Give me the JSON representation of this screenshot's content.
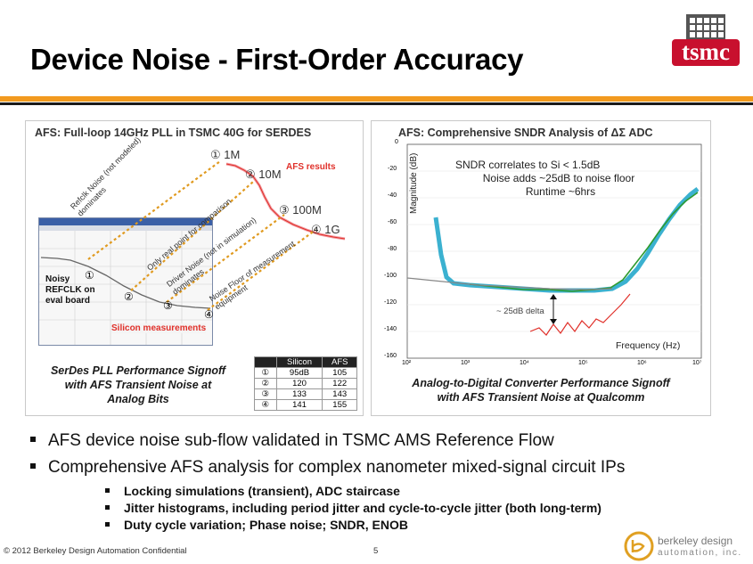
{
  "slide": {
    "title": "Device Noise - First-Order Accuracy",
    "logo_text": "tsmc",
    "footer_left": "© 2012 Berkeley Design Automation Confidential",
    "page_number": "5",
    "company_line1": "berkeley design",
    "company_line2": "automation, inc."
  },
  "left_panel": {
    "title": "AFS: Full-loop 14GHz PLL in TSMC 40G for SERDES",
    "caption_lines": [
      "SerDes PLL Performance Signoff",
      "with AFS Transient Noise at",
      "Analog Bits"
    ],
    "markers": [
      "① 1M",
      "② 10M",
      "③ 100M",
      "④ 1G"
    ],
    "small_markers": [
      "①",
      "②",
      "③",
      "④"
    ],
    "afs_results": "AFS results",
    "noisy_lines": [
      "Noisy",
      "REFCLK on",
      "eval board"
    ],
    "silicon_measurements": "Silicon measurements",
    "annot_refclk": "Refclk Noise (not modeled) dominates",
    "annot_only_real": "Only real point for comparison",
    "annot_driver": "Driver Noise (not in simulation) dominates",
    "annot_noise_floor": "Noise Floor of measurement equipment",
    "table": {
      "headers": [
        "",
        "Silicon",
        "AFS"
      ],
      "rows": [
        {
          "idx": "①",
          "silicon": "95dB",
          "afs": "105"
        },
        {
          "idx": "②",
          "silicon": "120",
          "afs": "122"
        },
        {
          "idx": "③",
          "silicon": "133",
          "afs": "143"
        },
        {
          "idx": "④",
          "silicon": "141",
          "afs": "155"
        }
      ]
    }
  },
  "right_panel": {
    "title": "AFS: Comprehensive SNDR Analysis of  ΔΣ ADC",
    "caption_lines": [
      "Analog-to-Digital Converter Performance Signoff",
      "with AFS Transient Noise at Qualcomm"
    ],
    "notes": [
      "SNDR correlates to Si < 1.5dB",
      "Noise adds ~25dB to noise floor",
      "Runtime ~6hrs"
    ],
    "delta_label": "~ 25dB delta",
    "xlabel": "Frequency (Hz)",
    "ylabel": "Magnitude (dB)",
    "yticks": [
      "0",
      "-20",
      "-40",
      "-60",
      "-80",
      "-100",
      "-120",
      "-140",
      "-160"
    ],
    "xticks": [
      "10²",
      "10³",
      "10⁴",
      "10⁵",
      "10⁶",
      "10⁷"
    ]
  },
  "bullets": [
    "AFS device noise sub-flow validated in TSMC AMS Reference Flow",
    "Comprehensive AFS analysis for complex nanometer mixed-signal circuit IPs"
  ],
  "sub_bullets": [
    "Locking simulations (transient), ADC staircase",
    "Jitter histograms, including period jitter and cycle-to-cycle jitter (both long-term)",
    "Duty cycle variation; Phase noise; SNDR, ENOB"
  ],
  "colors": {
    "accent_orange": "#f29a1f",
    "dark_bar": "#1a1a1a",
    "logo_red": "#c8102e",
    "afs_red": "#e0302a",
    "teal_trace": "#19a3c8",
    "green_trace": "#2e9a2e"
  }
}
